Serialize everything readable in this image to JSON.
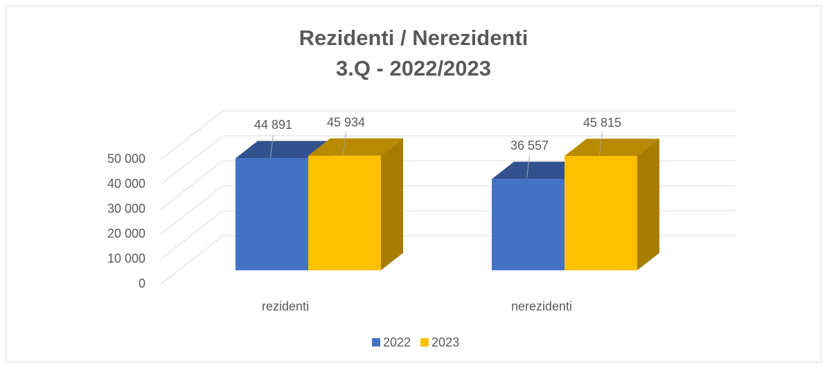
{
  "chart_data": {
    "type": "bar3d",
    "title": "Rezidenti / Nerezidenti",
    "subtitle": "3.Q - 2022/2023",
    "categories": [
      "rezidenti",
      "nerezidenti"
    ],
    "series": [
      {
        "name": "2022",
        "color": "#4472c4",
        "values": [
          44891,
          36557
        ],
        "value_labels": [
          "44 891",
          "36 557"
        ]
      },
      {
        "name": "2023",
        "color": "#ffc000",
        "values": [
          45934,
          45815
        ],
        "value_labels": [
          "45 934",
          "45 815"
        ]
      }
    ],
    "ylim": [
      0,
      50000
    ],
    "yticks": [
      0,
      {
        "value": 10000,
        "label": "10 000"
      },
      {
        "value": 20000,
        "label": "20 000"
      },
      {
        "value": 30000,
        "label": "30 000"
      },
      {
        "value": 40000,
        "label": "40 000"
      },
      {
        "value": 50000,
        "label": "50 000"
      }
    ],
    "grid": true,
    "legend": "bottom"
  }
}
